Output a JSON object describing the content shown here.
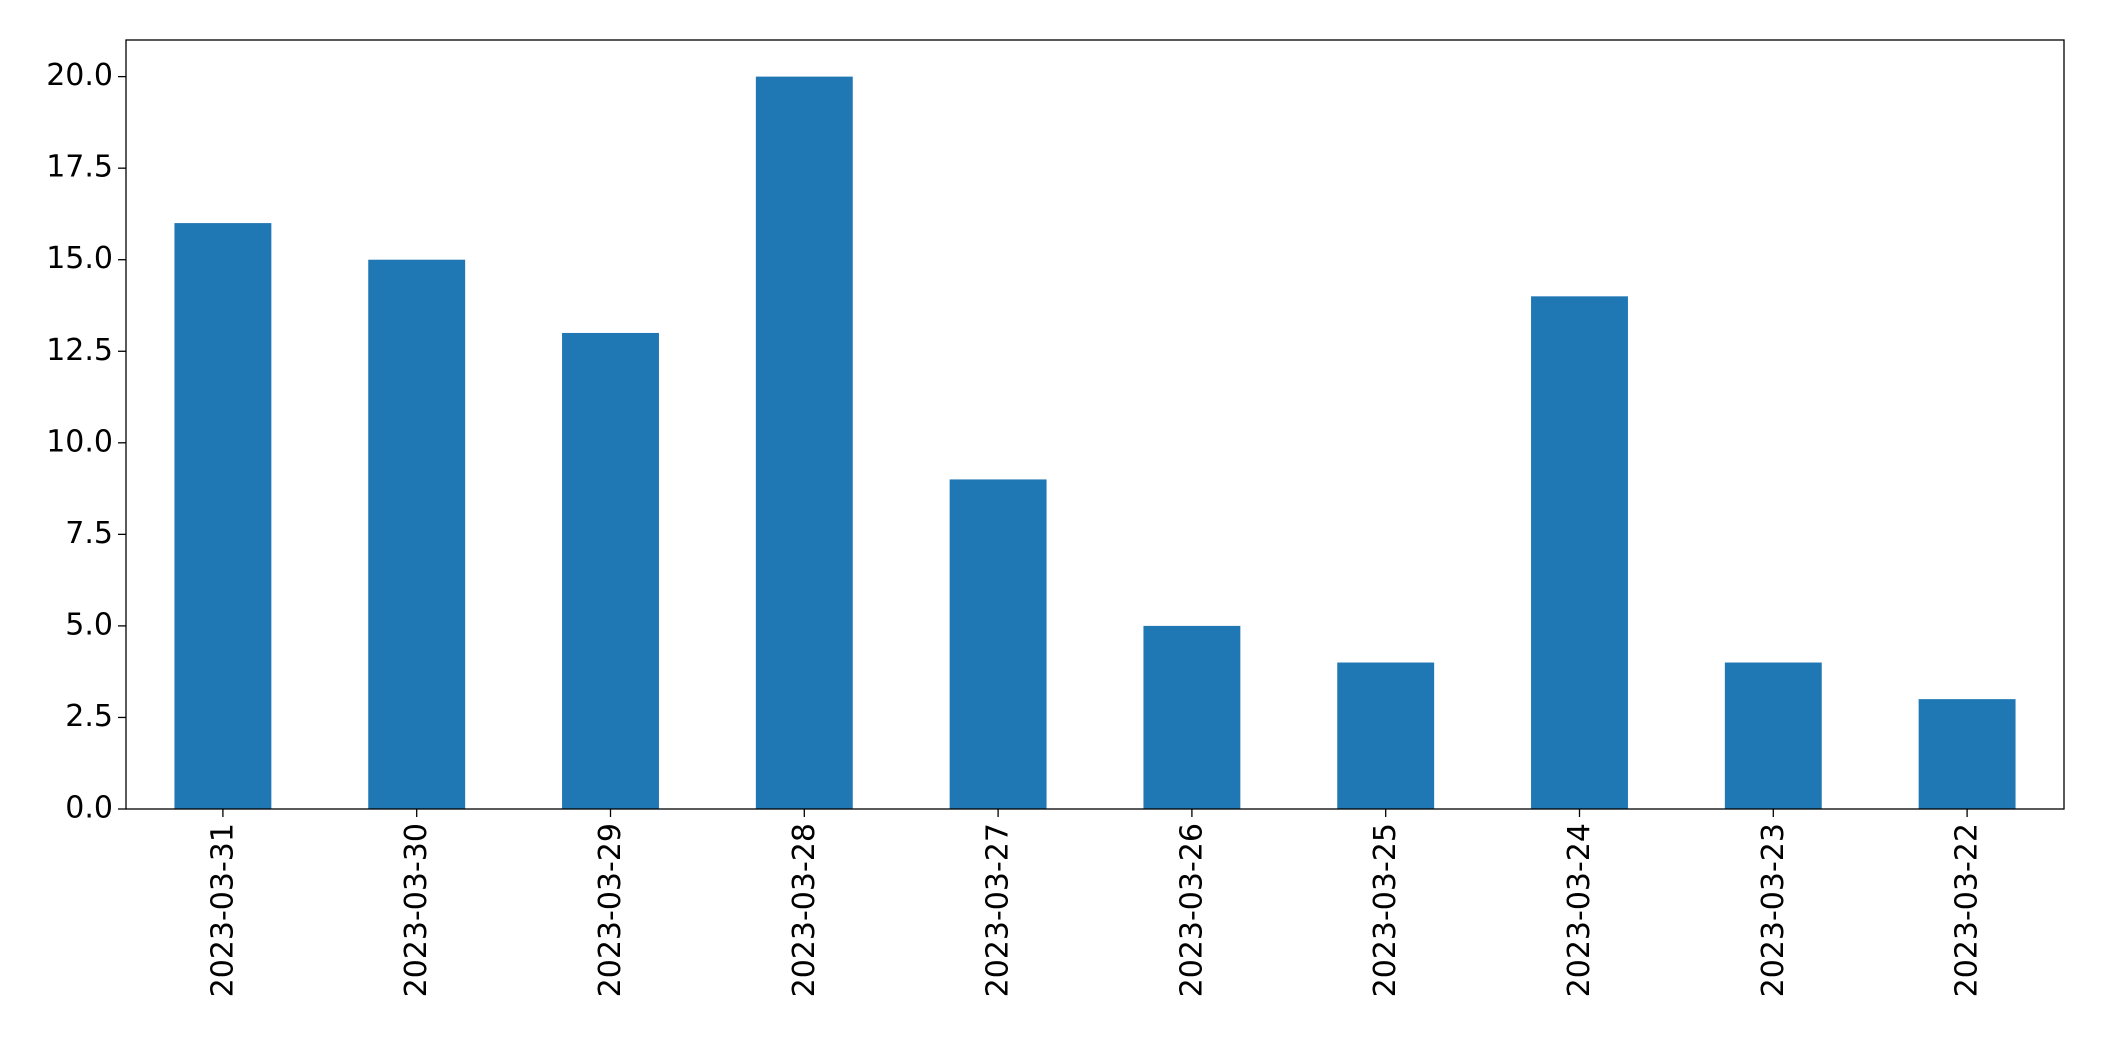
{
  "chart_data": {
    "type": "bar",
    "categories": [
      "2023-03-31",
      "2023-03-30",
      "2023-03-29",
      "2023-03-28",
      "2023-03-27",
      "2023-03-26",
      "2023-03-25",
      "2023-03-24",
      "2023-03-23",
      "2023-03-22"
    ],
    "values": [
      16,
      15,
      13,
      20,
      9,
      5,
      4,
      14,
      4,
      3
    ],
    "color": "#1f77b4",
    "ylim": [
      0,
      21
    ],
    "yticks": [
      {
        "value": 0,
        "label": "0.0"
      },
      2.5,
      {
        "value": 5,
        "label": "5.0"
      },
      7.5,
      {
        "value": 10,
        "label": "10.0"
      },
      12.5,
      {
        "value": 15,
        "label": "15.0"
      },
      17.5,
      {
        "value": 20,
        "label": "20.0"
      }
    ],
    "grid": false
  }
}
